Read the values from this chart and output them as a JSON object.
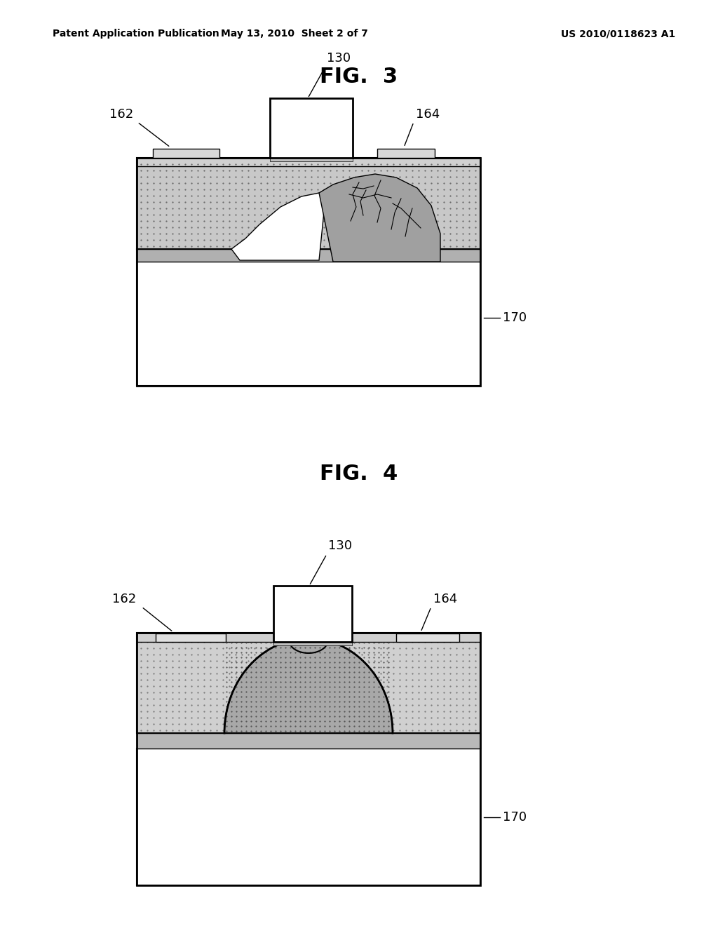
{
  "header_left": "Patent Application Publication",
  "header_mid": "May 13, 2010  Sheet 2 of 7",
  "header_right": "US 2010/0118623 A1",
  "fig3_title": "FIG.  3",
  "fig4_title": "FIG.  4",
  "label_130": "130",
  "label_162": "162",
  "label_164": "164",
  "label_170": "170",
  "bg_color": "#ffffff",
  "line_color": "#000000"
}
